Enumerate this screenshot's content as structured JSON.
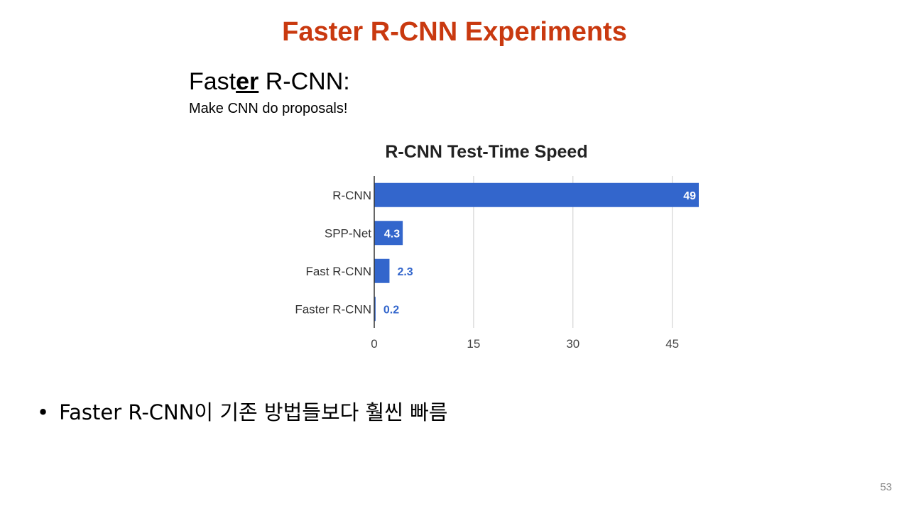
{
  "slide": {
    "title": "Faster R-CNN Experiments",
    "subhead_pre": "Fast",
    "subhead_emph": "er",
    "subhead_post": " R-CNN:",
    "tagline": "Make CNN do proposals!",
    "bullet_marker": "•",
    "bullet_text": "Faster R-CNN이 기존 방법들보다 훨씬 빠름",
    "page_number": "53"
  },
  "colors": {
    "title": "#c9390f",
    "bar": "#3366cc",
    "outside_label": "#3366cc",
    "inside_label": "#ffffff",
    "grid": "#cccccc"
  },
  "chart_data": {
    "type": "bar",
    "orientation": "horizontal",
    "title": "R-CNN Test-Time Speed",
    "categories": [
      "R-CNN",
      "SPP-Net",
      "Fast R-CNN",
      "Faster R-CNN"
    ],
    "values": [
      49,
      4.3,
      2.3,
      0.2
    ],
    "value_labels": [
      "49",
      "4.3",
      "2.3",
      "0.2"
    ],
    "xlim": [
      0,
      49
    ],
    "xticks": [
      0,
      15,
      30,
      45
    ],
    "xtick_labels": [
      "0",
      "15",
      "30",
      "45"
    ],
    "xlabel": "",
    "ylabel": "",
    "grid": true,
    "legend": "none"
  }
}
